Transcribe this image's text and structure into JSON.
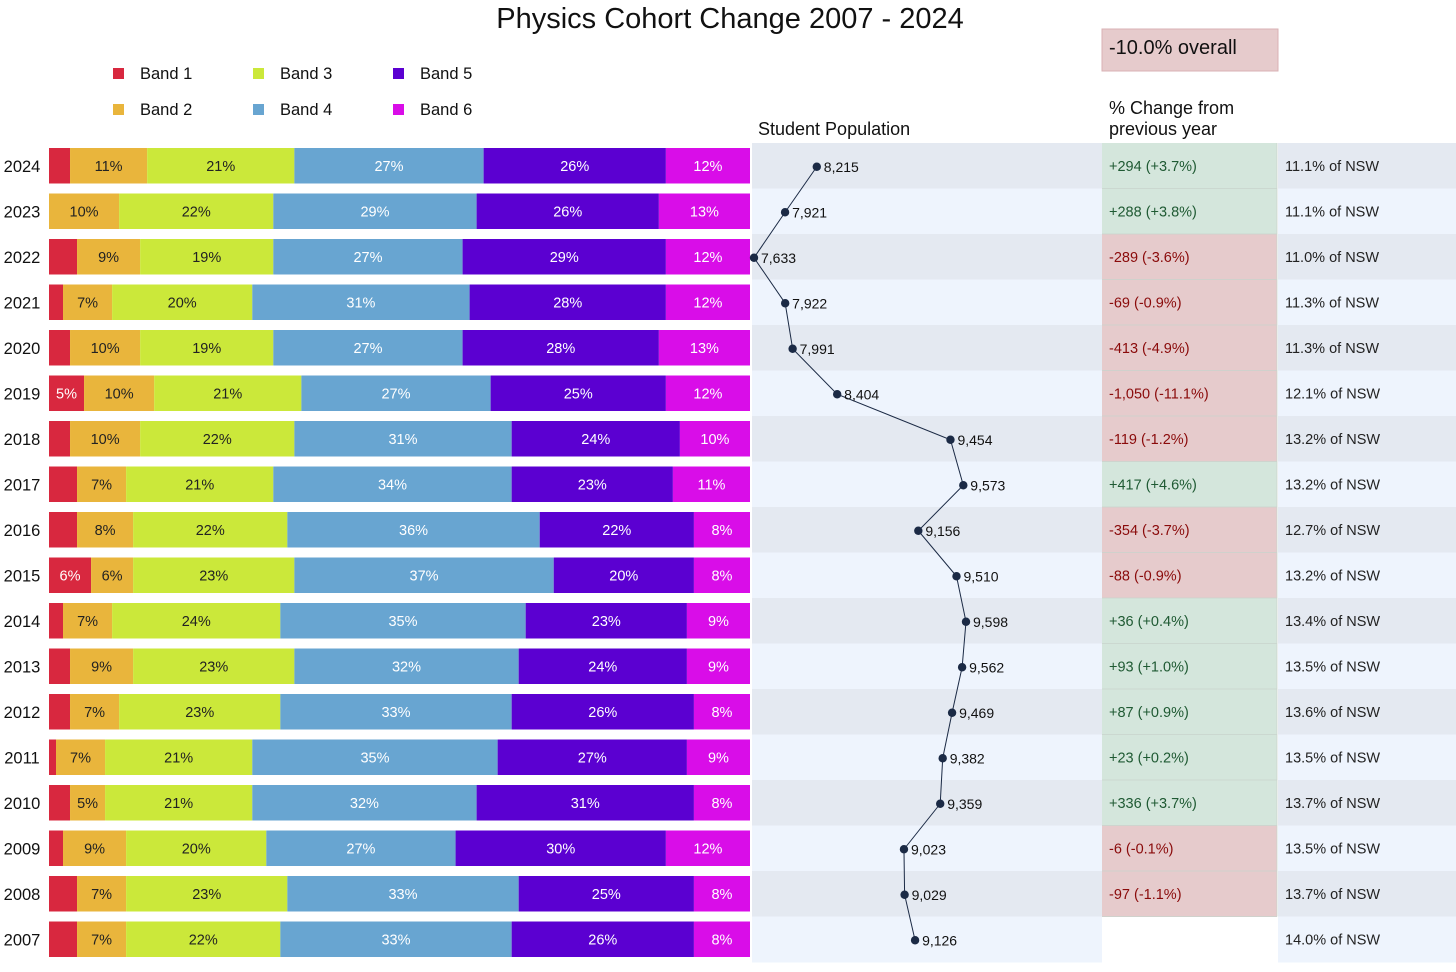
{
  "chart_data": {
    "type": "bar",
    "orientation": "horizontal-stacked-100",
    "title": "Physics Cohort Change 2007 - 2024",
    "legend": {
      "placement": "top-left",
      "entries": [
        {
          "name": "Band 1",
          "color": "#d8283f"
        },
        {
          "name": "Band 2",
          "color": "#e9b53c"
        },
        {
          "name": "Band 3",
          "color": "#cbe83a"
        },
        {
          "name": "Band 4",
          "color": "#68a5d1"
        },
        {
          "name": "Band 5",
          "color": "#5b00d1"
        },
        {
          "name": "Band 6",
          "color": "#d90de8"
        }
      ]
    },
    "categories": [
      "2024",
      "2023",
      "2022",
      "2021",
      "2020",
      "2019",
      "2018",
      "2017",
      "2016",
      "2015",
      "2014",
      "2013",
      "2012",
      "2011",
      "2010",
      "2009",
      "2008",
      "2007"
    ],
    "series": [
      {
        "name": "Band 1",
        "values": [
          3,
          0,
          4,
          2,
          3,
          5,
          3,
          4,
          4,
          6,
          2,
          3,
          3,
          1,
          3,
          2,
          4,
          4
        ],
        "labels": [
          "",
          "",
          "",
          "",
          "",
          "5%",
          "",
          "",
          "",
          "6%",
          "",
          "",
          "",
          "",
          "",
          "",
          "",
          ""
        ]
      },
      {
        "name": "Band 2",
        "values": [
          11,
          10,
          9,
          7,
          10,
          10,
          10,
          7,
          8,
          6,
          7,
          9,
          7,
          7,
          5,
          9,
          7,
          7
        ],
        "labels": [
          "11%",
          "10%",
          "9%",
          "7%",
          "10%",
          "10%",
          "10%",
          "7%",
          "8%",
          "6%",
          "7%",
          "9%",
          "7%",
          "7%",
          "5%",
          "9%",
          "7%",
          "7%"
        ]
      },
      {
        "name": "Band 3",
        "values": [
          21,
          22,
          19,
          20,
          19,
          21,
          22,
          21,
          22,
          23,
          24,
          23,
          23,
          21,
          21,
          20,
          23,
          22
        ],
        "labels": [
          "21%",
          "22%",
          "19%",
          "20%",
          "19%",
          "21%",
          "22%",
          "21%",
          "22%",
          "23%",
          "24%",
          "23%",
          "23%",
          "21%",
          "21%",
          "20%",
          "23%",
          "22%"
        ]
      },
      {
        "name": "Band 4",
        "values": [
          27,
          29,
          27,
          31,
          27,
          27,
          31,
          34,
          36,
          37,
          35,
          32,
          33,
          35,
          32,
          27,
          33,
          33
        ],
        "labels": [
          "27%",
          "29%",
          "27%",
          "31%",
          "27%",
          "27%",
          "31%",
          "34%",
          "36%",
          "37%",
          "35%",
          "32%",
          "33%",
          "35%",
          "32%",
          "27%",
          "33%",
          "33%"
        ]
      },
      {
        "name": "Band 5",
        "values": [
          26,
          26,
          29,
          28,
          28,
          25,
          24,
          23,
          22,
          20,
          23,
          24,
          26,
          27,
          31,
          30,
          25,
          26
        ],
        "labels": [
          "26%",
          "26%",
          "29%",
          "28%",
          "28%",
          "25%",
          "24%",
          "23%",
          "22%",
          "20%",
          "23%",
          "24%",
          "26%",
          "27%",
          "31%",
          "30%",
          "25%",
          "26%"
        ]
      },
      {
        "name": "Band 6",
        "values": [
          12,
          13,
          12,
          12,
          13,
          12,
          10,
          11,
          8,
          8,
          9,
          9,
          8,
          9,
          8,
          12,
          8,
          8
        ],
        "labels": [
          "12%",
          "13%",
          "12%",
          "12%",
          "13%",
          "12%",
          "10%",
          "11%",
          "8%",
          "8%",
          "9%",
          "9%",
          "8%",
          "9%",
          "8%",
          "12%",
          "8%",
          "8%"
        ]
      }
    ],
    "population": {
      "header": "Student Population",
      "values": [
        8215,
        7921,
        7633,
        7922,
        7991,
        8404,
        9454,
        9573,
        9156,
        9510,
        9598,
        9562,
        9469,
        9382,
        9359,
        9023,
        9029,
        9126
      ],
      "labels": [
        "8,215",
        "7,921",
        "7,633",
        "7,922",
        "7,991",
        "8,404",
        "9,454",
        "9,573",
        "9,156",
        "9,510",
        "9,598",
        "9,562",
        "9,469",
        "9,382",
        "9,359",
        "9,023",
        "9,029",
        "9,126"
      ],
      "xlim": [
        7600,
        9800
      ],
      "line_color": "#1b2a45"
    },
    "change": {
      "header_line1": "% Change from",
      "header_line2": "previous year",
      "overall": "-10.0% overall",
      "labels": [
        "+294  (+3.7%)",
        "+288  (+3.8%)",
        "-289  (-3.6%)",
        "-69  (-0.9%)",
        "-413  (-4.9%)",
        "-1,050  (-11.1%)",
        "-119  (-1.2%)",
        "+417  (+4.6%)",
        "-354  (-3.7%)",
        "-88  (-0.9%)",
        "+36  (+0.4%)",
        "+93  (+1.0%)",
        "+87  (+0.9%)",
        "+23  (+0.2%)",
        "+336  (+3.7%)",
        "-6  (-0.1%)",
        "-97  (-1.1%)",
        ""
      ],
      "signs": [
        "pos",
        "pos",
        "neg",
        "neg",
        "neg",
        "neg",
        "neg",
        "pos",
        "neg",
        "neg",
        "pos",
        "pos",
        "pos",
        "pos",
        "pos",
        "neg",
        "neg",
        ""
      ],
      "pos_bg": "#d4e6dc",
      "neg_bg": "#e6cbcc",
      "pos_text": "#1f5a33",
      "neg_text": "#8a0a0a"
    },
    "nsw_share": [
      "11.1% of NSW",
      "11.1% of NSW",
      "11.0% of NSW",
      "11.3% of NSW",
      "11.3% of NSW",
      "12.1% of NSW",
      "13.2% of NSW",
      "13.2% of NSW",
      "12.7% of NSW",
      "13.2% of NSW",
      "13.4% of NSW",
      "13.5% of NSW",
      "13.6% of NSW",
      "13.5% of NSW",
      "13.7% of NSW",
      "13.5% of NSW",
      "13.7% of NSW",
      "14.0% of NSW"
    ],
    "row_bg_even": "#e4e9f1",
    "row_bg_odd": "#eef4fd",
    "grid": false
  }
}
